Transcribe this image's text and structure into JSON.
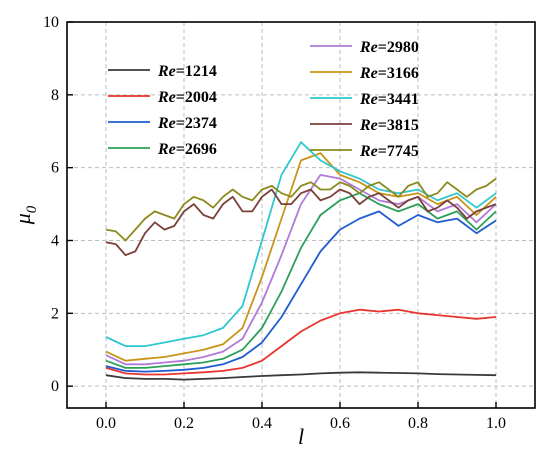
{
  "chart_data": {
    "type": "line",
    "xlabel": "l",
    "ylabel": "μ",
    "ylabel_sub": "0",
    "xlim": [
      -0.1,
      1.1
    ],
    "ylim": [
      -0.6,
      10.0
    ],
    "xticks": [
      0.0,
      0.2,
      0.4,
      0.6,
      0.8,
      1.0
    ],
    "xtick_labels": [
      "0.0",
      "0.2",
      "0.4",
      "0.6",
      "0.8",
      "1.0"
    ],
    "yticks": [
      0,
      2,
      4,
      6,
      8,
      10
    ],
    "ytick_labels": [
      "0",
      "2",
      "4",
      "6",
      "8",
      "10"
    ],
    "grid": true,
    "legend_position": "top",
    "series": [
      {
        "name": "Re=1214",
        "label_prefix": "Re",
        "label_value": "=1214",
        "color": "#3a3a3a",
        "x": [
          0.0,
          0.05,
          0.1,
          0.15,
          0.2,
          0.25,
          0.3,
          0.35,
          0.4,
          0.45,
          0.5,
          0.55,
          0.6,
          0.65,
          0.7,
          0.75,
          0.8,
          0.85,
          0.9,
          0.95,
          1.0
        ],
        "values": [
          0.3,
          0.22,
          0.2,
          0.2,
          0.18,
          0.2,
          0.22,
          0.25,
          0.28,
          0.3,
          0.32,
          0.35,
          0.37,
          0.38,
          0.37,
          0.36,
          0.35,
          0.33,
          0.32,
          0.31,
          0.3
        ]
      },
      {
        "name": "Re=2004",
        "label_prefix": "Re",
        "label_value": "=2004",
        "color": "#e8352e",
        "x": [
          0.0,
          0.05,
          0.1,
          0.15,
          0.2,
          0.25,
          0.3,
          0.35,
          0.4,
          0.45,
          0.5,
          0.55,
          0.6,
          0.65,
          0.7,
          0.75,
          0.8,
          0.85,
          0.9,
          0.95,
          1.0
        ],
        "values": [
          0.5,
          0.35,
          0.32,
          0.32,
          0.35,
          0.38,
          0.42,
          0.5,
          0.7,
          1.1,
          1.5,
          1.8,
          2.0,
          2.1,
          2.05,
          2.1,
          2.0,
          1.95,
          1.9,
          1.85,
          1.9
        ]
      },
      {
        "name": "Re=2374",
        "label_prefix": "Re",
        "label_value": "=2374",
        "color": "#1f5bd1",
        "x": [
          0.0,
          0.05,
          0.1,
          0.15,
          0.2,
          0.25,
          0.3,
          0.35,
          0.4,
          0.45,
          0.5,
          0.55,
          0.6,
          0.65,
          0.7,
          0.75,
          0.8,
          0.85,
          0.9,
          0.95,
          1.0
        ],
        "values": [
          0.55,
          0.42,
          0.4,
          0.42,
          0.45,
          0.5,
          0.6,
          0.8,
          1.2,
          1.9,
          2.8,
          3.7,
          4.3,
          4.6,
          4.8,
          4.4,
          4.7,
          4.5,
          4.6,
          4.2,
          4.55
        ]
      },
      {
        "name": "Re=2696",
        "label_prefix": "Re",
        "label_value": "=2696",
        "color": "#2ca05a",
        "x": [
          0.0,
          0.05,
          0.1,
          0.15,
          0.2,
          0.25,
          0.3,
          0.35,
          0.4,
          0.45,
          0.5,
          0.55,
          0.6,
          0.65,
          0.7,
          0.75,
          0.8,
          0.85,
          0.9,
          0.95,
          1.0
        ],
        "values": [
          0.7,
          0.5,
          0.5,
          0.55,
          0.6,
          0.65,
          0.75,
          1.0,
          1.6,
          2.6,
          3.8,
          4.7,
          5.1,
          5.3,
          5.0,
          4.8,
          5.0,
          4.6,
          4.8,
          4.3,
          4.8
        ]
      },
      {
        "name": "Re=2980",
        "label_prefix": "Re",
        "label_value": "=2980",
        "color": "#b07ad8",
        "x": [
          0.0,
          0.05,
          0.1,
          0.15,
          0.2,
          0.25,
          0.3,
          0.35,
          0.4,
          0.45,
          0.5,
          0.55,
          0.6,
          0.65,
          0.7,
          0.75,
          0.8,
          0.85,
          0.9,
          0.95,
          1.0
        ],
        "values": [
          0.85,
          0.6,
          0.6,
          0.65,
          0.7,
          0.8,
          0.95,
          1.3,
          2.3,
          3.6,
          5.0,
          5.8,
          5.7,
          5.4,
          5.1,
          5.0,
          5.2,
          4.8,
          5.0,
          4.5,
          5.0
        ]
      },
      {
        "name": "Re=3166",
        "label_prefix": "Re",
        "label_value": "=3166",
        "color": "#c9941a",
        "x": [
          0.0,
          0.05,
          0.1,
          0.15,
          0.2,
          0.25,
          0.3,
          0.35,
          0.4,
          0.45,
          0.5,
          0.55,
          0.6,
          0.65,
          0.7,
          0.75,
          0.8,
          0.85,
          0.9,
          0.95,
          1.0
        ],
        "values": [
          0.95,
          0.7,
          0.75,
          0.8,
          0.9,
          1.0,
          1.15,
          1.6,
          3.0,
          4.6,
          6.2,
          6.4,
          5.8,
          5.6,
          5.3,
          5.2,
          5.3,
          5.0,
          5.2,
          4.7,
          5.2
        ]
      },
      {
        "name": "Re=3441",
        "label_prefix": "Re",
        "label_value": "=3441",
        "color": "#2ec6cf",
        "x": [
          0.0,
          0.05,
          0.1,
          0.15,
          0.2,
          0.25,
          0.3,
          0.35,
          0.4,
          0.45,
          0.5,
          0.55,
          0.6,
          0.65,
          0.7,
          0.75,
          0.8,
          0.85,
          0.9,
          0.95,
          1.0
        ],
        "values": [
          1.35,
          1.1,
          1.1,
          1.2,
          1.3,
          1.4,
          1.6,
          2.2,
          4.0,
          5.8,
          6.7,
          6.2,
          5.9,
          5.7,
          5.4,
          5.3,
          5.4,
          5.1,
          5.3,
          4.9,
          5.3
        ]
      },
      {
        "name": "Re=3815",
        "label_prefix": "Re",
        "label_value": "=3815",
        "color": "#7b3f3a",
        "x": [
          0.0,
          0.025,
          0.05,
          0.075,
          0.1,
          0.125,
          0.15,
          0.175,
          0.2,
          0.225,
          0.25,
          0.275,
          0.3,
          0.325,
          0.35,
          0.375,
          0.4,
          0.425,
          0.45,
          0.475,
          0.5,
          0.525,
          0.55,
          0.575,
          0.6,
          0.625,
          0.65,
          0.675,
          0.7,
          0.725,
          0.75,
          0.775,
          0.8,
          0.825,
          0.85,
          0.875,
          0.9,
          0.925,
          0.95,
          0.975,
          1.0
        ],
        "values": [
          3.95,
          3.9,
          3.6,
          3.7,
          4.2,
          4.5,
          4.3,
          4.4,
          4.8,
          5.0,
          4.7,
          4.6,
          5.0,
          5.2,
          4.8,
          4.8,
          5.2,
          5.4,
          5.0,
          5.0,
          5.3,
          5.4,
          5.1,
          5.2,
          5.4,
          5.3,
          5.0,
          5.2,
          5.3,
          5.1,
          4.9,
          5.1,
          5.2,
          4.8,
          4.9,
          5.1,
          4.9,
          4.6,
          4.8,
          4.9,
          5.0
        ]
      },
      {
        "name": "Re=7745",
        "label_prefix": "Re",
        "label_value": "=7745",
        "color": "#8c8a1c",
        "x": [
          0.0,
          0.025,
          0.05,
          0.075,
          0.1,
          0.125,
          0.15,
          0.175,
          0.2,
          0.225,
          0.25,
          0.275,
          0.3,
          0.325,
          0.35,
          0.375,
          0.4,
          0.425,
          0.45,
          0.475,
          0.5,
          0.525,
          0.55,
          0.575,
          0.6,
          0.625,
          0.65,
          0.675,
          0.7,
          0.725,
          0.75,
          0.775,
          0.8,
          0.825,
          0.85,
          0.875,
          0.9,
          0.925,
          0.95,
          0.975,
          1.0
        ],
        "values": [
          4.3,
          4.25,
          4.0,
          4.3,
          4.6,
          4.8,
          4.7,
          4.6,
          5.0,
          5.2,
          5.1,
          4.9,
          5.2,
          5.4,
          5.2,
          5.1,
          5.4,
          5.5,
          5.3,
          5.2,
          5.5,
          5.6,
          5.4,
          5.4,
          5.6,
          5.5,
          5.3,
          5.5,
          5.6,
          5.4,
          5.2,
          5.5,
          5.6,
          5.2,
          5.3,
          5.6,
          5.4,
          5.2,
          5.4,
          5.5,
          5.7
        ]
      }
    ]
  }
}
